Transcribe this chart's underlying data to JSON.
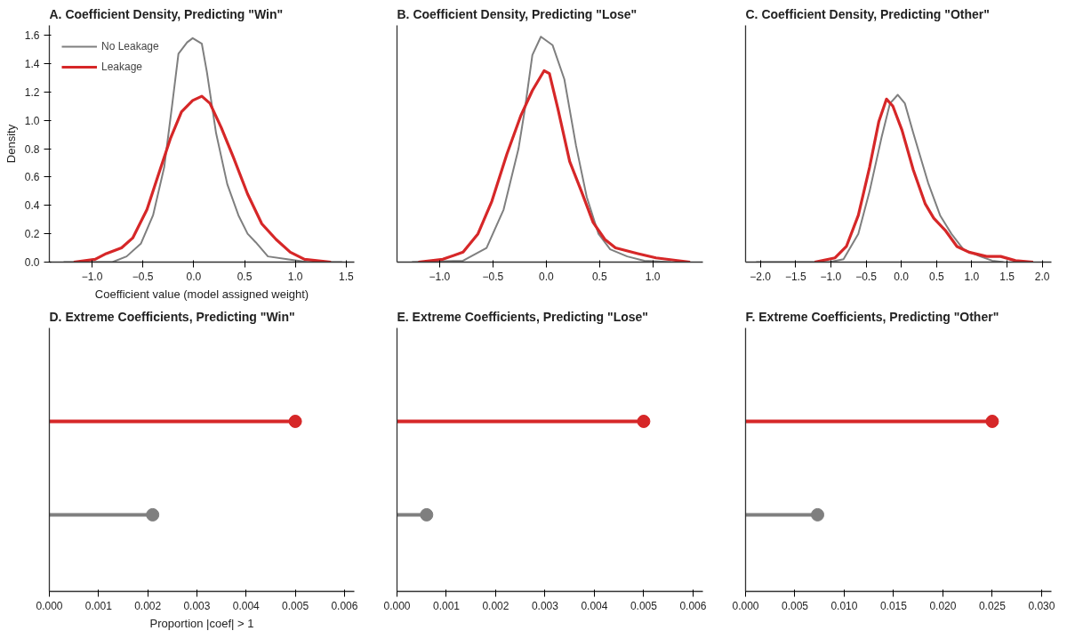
{
  "chart_data": [
    {
      "type": "line",
      "title": "A. Coefficient Density, Predicting \"Win\"",
      "xlabel": "Coefficient value (model assigned weight)",
      "ylabel": "Density",
      "xlim": [
        -1.42,
        1.58
      ],
      "ylim": [
        0,
        1.67
      ],
      "xticks": [
        {
          "value": -1.0,
          "label": "−1.0"
        },
        {
          "value": -0.5,
          "label": "−0.5"
        },
        {
          "value": 0.0,
          "label": "0.0"
        },
        {
          "value": 0.5,
          "label": "0.5"
        },
        {
          "value": 1.0,
          "label": "1.0"
        },
        {
          "value": 1.5,
          "label": "1.5"
        }
      ],
      "yticks": [
        {
          "value": 0.0,
          "label": "0.0"
        },
        {
          "value": 0.2,
          "label": "0.2"
        },
        {
          "value": 0.4,
          "label": "0.4"
        },
        {
          "value": 0.6,
          "label": "0.6"
        },
        {
          "value": 0.8,
          "label": "0.8"
        },
        {
          "value": 1.0,
          "label": "1.0"
        },
        {
          "value": 1.2,
          "label": "1.2"
        },
        {
          "value": 1.4,
          "label": "1.4"
        },
        {
          "value": 1.6,
          "label": "1.6"
        }
      ],
      "legend": "top left",
      "grid": false,
      "series": [
        {
          "name": "No Leakage",
          "color": "#7f7f7f",
          "x": [
            -1.28,
            -0.8,
            -0.66,
            -0.52,
            -0.4,
            -0.29,
            -0.21,
            -0.15,
            -0.065,
            -0.01,
            0.08,
            0.13,
            0.22,
            0.33,
            0.44,
            0.53,
            0.61,
            0.73,
            0.92,
            1.12,
            1.46
          ],
          "values": [
            0,
            0,
            0.04,
            0.13,
            0.33,
            0.67,
            1.12,
            1.47,
            1.55,
            1.58,
            1.54,
            1.34,
            0.91,
            0.55,
            0.33,
            0.2,
            0.14,
            0.04,
            0.02,
            0,
            0
          ]
        },
        {
          "name": "Leakage",
          "color": "#d62728",
          "x": [
            -1.18,
            -0.97,
            -0.86,
            -0.71,
            -0.6,
            -0.46,
            -0.35,
            -0.23,
            -0.12,
            -0.01,
            0.08,
            0.16,
            0.27,
            0.39,
            0.53,
            0.67,
            0.81,
            0.95,
            1.09,
            1.35
          ],
          "values": [
            0,
            0.02,
            0.06,
            0.1,
            0.17,
            0.37,
            0.61,
            0.87,
            1.06,
            1.14,
            1.17,
            1.12,
            0.95,
            0.74,
            0.48,
            0.27,
            0.16,
            0.07,
            0.02,
            0
          ]
        }
      ]
    },
    {
      "type": "line",
      "title": "B. Coefficient Density, Predicting \"Lose\"",
      "xlim": [
        -1.4,
        1.47
      ],
      "ylim": [
        0,
        1.67
      ],
      "tick_labels": "x",
      "xticks": [
        {
          "value": -1.0,
          "label": "−1.0"
        },
        {
          "value": -0.5,
          "label": "−0.5"
        },
        {
          "value": 0.0,
          "label": "0.0"
        },
        {
          "value": 0.5,
          "label": "0.5"
        },
        {
          "value": 1.0,
          "label": "1.0"
        }
      ],
      "grid": false,
      "series": [
        {
          "color": "#7f7f7f",
          "x": [
            -1.26,
            -0.78,
            -0.56,
            -0.4,
            -0.26,
            -0.2,
            -0.13,
            -0.05,
            0.06,
            0.17,
            0.28,
            0.38,
            0.49,
            0.6,
            0.76,
            0.92,
            1.17
          ],
          "values": [
            0,
            0.01,
            0.1,
            0.37,
            0.8,
            1.08,
            1.46,
            1.59,
            1.53,
            1.29,
            0.82,
            0.46,
            0.2,
            0.09,
            0.04,
            0.01,
            0
          ]
        },
        {
          "color": "#d62728",
          "x": [
            -1.2,
            -0.97,
            -0.78,
            -0.64,
            -0.51,
            -0.37,
            -0.24,
            -0.13,
            -0.02,
            0.03,
            0.11,
            0.22,
            0.33,
            0.44,
            0.55,
            0.65,
            0.86,
            1.03,
            1.35
          ],
          "values": [
            0,
            0.02,
            0.07,
            0.2,
            0.43,
            0.76,
            1.03,
            1.21,
            1.35,
            1.33,
            1.08,
            0.71,
            0.5,
            0.28,
            0.16,
            0.1,
            0.06,
            0.03,
            0
          ]
        }
      ]
    },
    {
      "type": "line",
      "title": "C. Coefficient Density, Predicting \"Other\"",
      "xlim": [
        -2.21,
        2.13
      ],
      "ylim": [
        0,
        1.67
      ],
      "tick_labels": "x",
      "xticks": [
        {
          "value": -2.0,
          "label": "−2.0"
        },
        {
          "value": -1.5,
          "label": "−1.5"
        },
        {
          "value": -1.0,
          "label": "−1.0"
        },
        {
          "value": -0.5,
          "label": "−0.5"
        },
        {
          "value": 0.0,
          "label": "0.0"
        },
        {
          "value": 0.5,
          "label": "0.5"
        },
        {
          "value": 1.0,
          "label": "1.0"
        },
        {
          "value": 1.5,
          "label": "1.5"
        },
        {
          "value": 2.0,
          "label": "2.0"
        }
      ],
      "grid": false,
      "series": [
        {
          "color": "#7f7f7f",
          "x": [
            -2.06,
            -1.02,
            -0.82,
            -0.61,
            -0.45,
            -0.28,
            -0.16,
            -0.05,
            0.05,
            0.17,
            0.26,
            0.38,
            0.55,
            0.71,
            0.88,
            1.12,
            1.29,
            1.45
          ],
          "values": [
            0,
            0,
            0.02,
            0.2,
            0.5,
            0.88,
            1.12,
            1.18,
            1.12,
            0.91,
            0.76,
            0.56,
            0.33,
            0.2,
            0.09,
            0.04,
            0.01,
            0
          ]
        },
        {
          "color": "#d62728",
          "x": [
            -1.23,
            -0.94,
            -0.78,
            -0.61,
            -0.45,
            -0.32,
            -0.21,
            -0.12,
            0.01,
            0.17,
            0.34,
            0.46,
            0.63,
            0.79,
            0.96,
            1.21,
            1.41,
            1.62,
            1.87
          ],
          "values": [
            0,
            0.03,
            0.11,
            0.33,
            0.67,
            0.99,
            1.15,
            1.1,
            0.93,
            0.65,
            0.41,
            0.31,
            0.22,
            0.11,
            0.07,
            0.04,
            0.04,
            0.01,
            0
          ]
        }
      ]
    },
    {
      "type": "lollipop",
      "orientation": "horizontal",
      "title": "D. Extreme Coefficients, Predicting \"Win\"",
      "xlabel": "Proportion |coef| > 1",
      "categories": [
        null,
        null
      ],
      "values": [
        0.005,
        0.0021
      ],
      "colors": [
        "#d62728",
        "#7f7f7f"
      ],
      "xlim": [
        0,
        0.0062
      ],
      "xticks": [
        {
          "value": 0,
          "label": "0.000"
        },
        {
          "value": 0.001,
          "label": "0.001"
        },
        {
          "value": 0.002,
          "label": "0.002"
        },
        {
          "value": 0.003,
          "label": "0.003"
        },
        {
          "value": 0.004,
          "label": "0.004"
        },
        {
          "value": 0.005,
          "label": "0.005"
        },
        {
          "value": 0.006,
          "label": "0.006"
        }
      ],
      "grid": false
    },
    {
      "type": "lollipop",
      "orientation": "horizontal",
      "title": "E. Extreme Coefficients, Predicting \"Lose\"",
      "categories": [
        null,
        null
      ],
      "values": [
        0.005,
        0.0006
      ],
      "colors": [
        "#d62728",
        "#7f7f7f"
      ],
      "xlim": [
        0,
        0.0062
      ],
      "xticks": [
        {
          "value": 0,
          "label": "0.000"
        },
        {
          "value": 0.001,
          "label": "0.001"
        },
        {
          "value": 0.002,
          "label": "0.002"
        },
        {
          "value": 0.003,
          "label": "0.003"
        },
        {
          "value": 0.004,
          "label": "0.004"
        },
        {
          "value": 0.005,
          "label": "0.005"
        },
        {
          "value": 0.006,
          "label": "0.006"
        }
      ],
      "grid": false
    },
    {
      "type": "lollipop",
      "orientation": "horizontal",
      "title": "F. Extreme Coefficients, Predicting \"Other\"",
      "categories": [
        null,
        null
      ],
      "values": [
        0.025,
        0.0073
      ],
      "colors": [
        "#d62728",
        "#7f7f7f"
      ],
      "xlim": [
        0,
        0.031
      ],
      "xticks": [
        {
          "value": 0,
          "label": "0.000"
        },
        {
          "value": 0.005,
          "label": "0.005"
        },
        {
          "value": 0.01,
          "label": "0.010"
        },
        {
          "value": 0.015,
          "label": "0.015"
        },
        {
          "value": 0.02,
          "label": "0.020"
        },
        {
          "value": 0.025,
          "label": "0.025"
        },
        {
          "value": 0.03,
          "label": "0.030"
        }
      ],
      "grid": false
    }
  ]
}
